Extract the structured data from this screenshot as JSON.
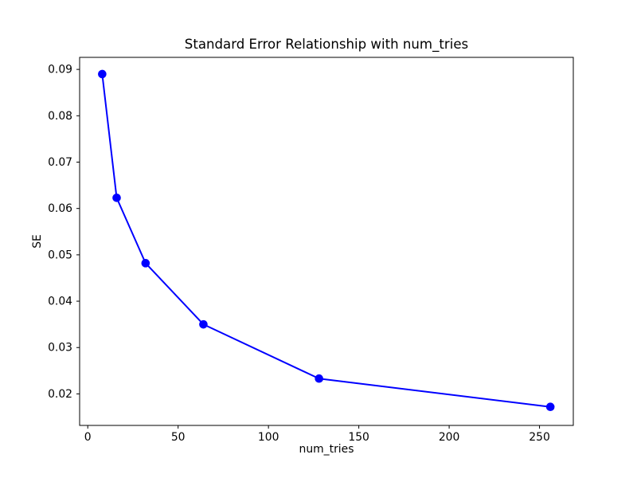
{
  "chart_data": {
    "type": "line",
    "title": "Standard Error Relationship with num_tries",
    "xlabel": "num_tries",
    "ylabel": "SE",
    "x": [
      8,
      16,
      32,
      64,
      128,
      256
    ],
    "y": [
      0.089,
      0.0623,
      0.0482,
      0.035,
      0.0233,
      0.0172
    ],
    "line_color": "#0000ff",
    "marker": "circle",
    "marker_color": "#0000ff",
    "background_color": "#ffffff",
    "axis_color": "#000000",
    "grid": false,
    "legend": null,
    "xlim": [
      -4.5,
      268.7
    ],
    "ylim": [
      0.0132,
      0.0926
    ],
    "xticks": {
      "values": [
        0,
        50,
        100,
        150,
        200,
        250
      ],
      "labels": [
        "0",
        "50",
        "100",
        "150",
        "200",
        "250"
      ]
    },
    "yticks": {
      "values": [
        0.02,
        0.03,
        0.04,
        0.05,
        0.06,
        0.07,
        0.08,
        0.09
      ],
      "labels": [
        "0.02",
        "0.03",
        "0.04",
        "0.05",
        "0.06",
        "0.07",
        "0.08",
        "0.09"
      ]
    }
  }
}
